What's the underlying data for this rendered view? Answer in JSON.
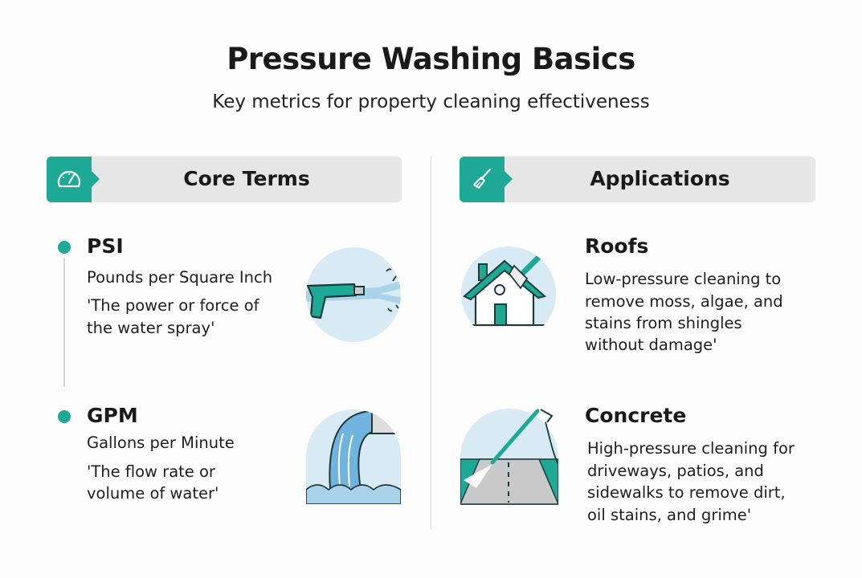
{
  "title": "Pressure Washing Basics",
  "subtitle": "Key metrics for property cleaning effectiveness",
  "colors": {
    "accent": "#1ea896",
    "header_bg": "#e6e6e6",
    "icon_bg": "#d8eaf3"
  },
  "core_terms": {
    "header": "Core Terms",
    "header_icon": "speedometer-icon",
    "items": [
      {
        "term": "PSI",
        "full": "Pounds per Square Inch",
        "desc": [
          "'The power or force of",
          "the water spray'"
        ],
        "icon": "spray-gun-icon"
      },
      {
        "term": "GPM",
        "full": "Gallons per Minute",
        "desc": [
          "'The flow rate or",
          "volume of water'"
        ],
        "icon": "water-pipe-flow-icon"
      }
    ]
  },
  "applications": {
    "header": "Applications",
    "header_icon": "brush-icon",
    "items": [
      {
        "title": "Roofs",
        "desc": [
          "Low-pressure cleaning to",
          "remove moss, algae, and",
          "stains from shingles",
          "without damage'"
        ],
        "icon": "house-roof-cleaning-icon"
      },
      {
        "title": "Concrete",
        "desc": [
          "High-pressure cleaning for",
          "driveways, patios, and",
          "sidewalks to remove dirt,",
          "oil stains, and grime'"
        ],
        "icon": "pressure-washer-driveway-icon"
      }
    ]
  }
}
